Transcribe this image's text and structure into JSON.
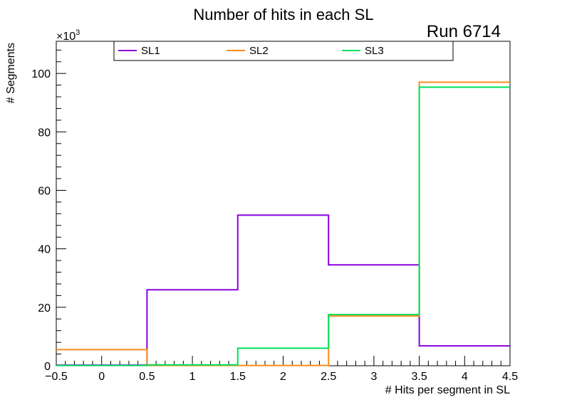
{
  "chart_data": {
    "type": "histogram-step",
    "title": "Number of hits in each SL",
    "annotation": "Run 6714",
    "xlabel": "# Hits per segment in SL",
    "ylabel": "# Segments",
    "y_multiplier_label": "×10",
    "y_multiplier_exponent": "3",
    "xlim": [
      -0.5,
      4.5
    ],
    "ylim": [
      0,
      111
    ],
    "x_ticks": [
      -0.5,
      0,
      0.5,
      1,
      1.5,
      2,
      2.5,
      3,
      3.5,
      4,
      4.5
    ],
    "x_tick_labels": [
      "−0.5",
      "0",
      "0.5",
      "1",
      "1.5",
      "2",
      "2.5",
      "3",
      "3.5",
      "4",
      "4.5"
    ],
    "y_ticks": [
      0,
      20,
      40,
      60,
      80,
      100
    ],
    "y_tick_labels": [
      "0",
      "20",
      "40",
      "60",
      "80",
      "100"
    ],
    "bin_edges": [
      -0.5,
      0.5,
      1.5,
      2.5,
      3.5,
      4.5
    ],
    "series": [
      {
        "name": "SL1",
        "color": "#8b00e0",
        "values": [
          0.2,
          26.0,
          51.5,
          34.5,
          6.8
        ]
      },
      {
        "name": "SL2",
        "color": "#ff8c1a",
        "values": [
          5.5,
          0.1,
          0.1,
          17.0,
          97.0
        ]
      },
      {
        "name": "SL3",
        "color": "#00e05a",
        "values": [
          0.1,
          0.3,
          6.0,
          17.5,
          95.3
        ]
      }
    ],
    "legend_position": "top-inside"
  }
}
